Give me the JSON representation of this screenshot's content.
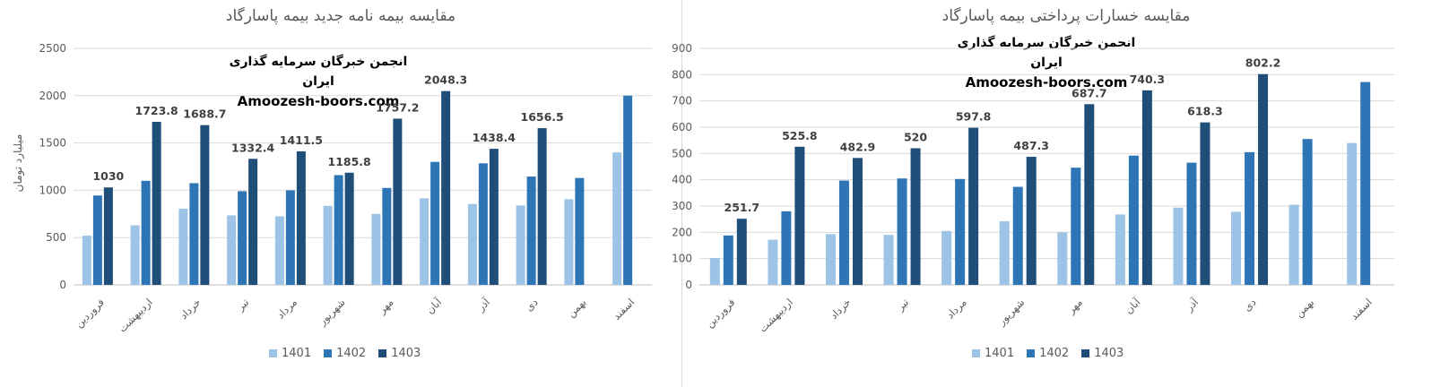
{
  "colors": {
    "s1401": "#9dc3e6",
    "s1402": "#2e75b6",
    "s1403": "#1f4e79"
  },
  "chart_data": [
    {
      "type": "bar",
      "title": "مقایسه بیمه نامه جدید بیمه پاسارگاد",
      "ylabel": "میلیارد تومان",
      "ylim": [
        0,
        2500
      ],
      "yticks": [
        0,
        500,
        1000,
        1500,
        2000,
        2500
      ],
      "categories": [
        "فروردین",
        "اردیبهشت",
        "خرداد",
        "تیر",
        "مرداد",
        "شهریور",
        "مهر",
        "آبان",
        "آذر",
        "دی",
        "بهمن",
        "اسفند"
      ],
      "series": [
        {
          "name": "1401",
          "values": [
            520,
            630,
            805,
            735,
            725,
            835,
            750,
            915,
            855,
            840,
            905,
            1400
          ]
        },
        {
          "name": "1402",
          "values": [
            945,
            1100,
            1075,
            990,
            1000,
            1160,
            1025,
            1300,
            1285,
            1145,
            1130,
            2000
          ]
        },
        {
          "name": "1403",
          "values": [
            1030,
            1723.8,
            1688.7,
            1332.4,
            1411.5,
            1185.8,
            1757.2,
            2048.3,
            1438.4,
            1656.5,
            null,
            null
          ]
        }
      ],
      "data_labels": [
        "1030",
        "1723.8",
        "1688.7",
        "1332.4",
        "1411.5",
        "1185.8",
        "1757.2",
        "2048.3",
        "1438.4",
        "1656.5",
        "",
        ""
      ],
      "legend_position": "bottom",
      "grid": true
    },
    {
      "type": "bar",
      "title": "مقایسه خسارات پرداختی بیمه پاسارگاد",
      "ylabel": "",
      "ylim": [
        0,
        900
      ],
      "yticks": [
        0,
        100,
        200,
        300,
        400,
        500,
        600,
        700,
        800,
        900
      ],
      "categories": [
        "فروردین",
        "اردیبهشت",
        "خرداد",
        "تیر",
        "مرداد",
        "شهریور",
        "مهر",
        "آبان",
        "آذر",
        "دی",
        "بهمن",
        "اسفند"
      ],
      "series": [
        {
          "name": "1401",
          "values": [
            102,
            172,
            193,
            190,
            205,
            242,
            200,
            268,
            294,
            278,
            305,
            540
          ]
        },
        {
          "name": "1402",
          "values": [
            188,
            280,
            397,
            405,
            403,
            373,
            446,
            492,
            465,
            505,
            555,
            772
          ]
        },
        {
          "name": "1403",
          "values": [
            251.7,
            525.8,
            482.9,
            520,
            597.8,
            487.3,
            687.7,
            740.3,
            618.3,
            802.2,
            null,
            null
          ]
        }
      ],
      "data_labels": [
        "251.7",
        "525.8",
        "482.9",
        "520",
        "597.8",
        "487.3",
        "687.7",
        "740.3",
        "618.3",
        "802.2",
        "",
        ""
      ],
      "legend_position": "bottom",
      "grid": true
    }
  ],
  "watermark": {
    "line1": "انجمن خبرگان سرمایه گذاری ایران",
    "line2": "Amoozesh-boors.com"
  }
}
